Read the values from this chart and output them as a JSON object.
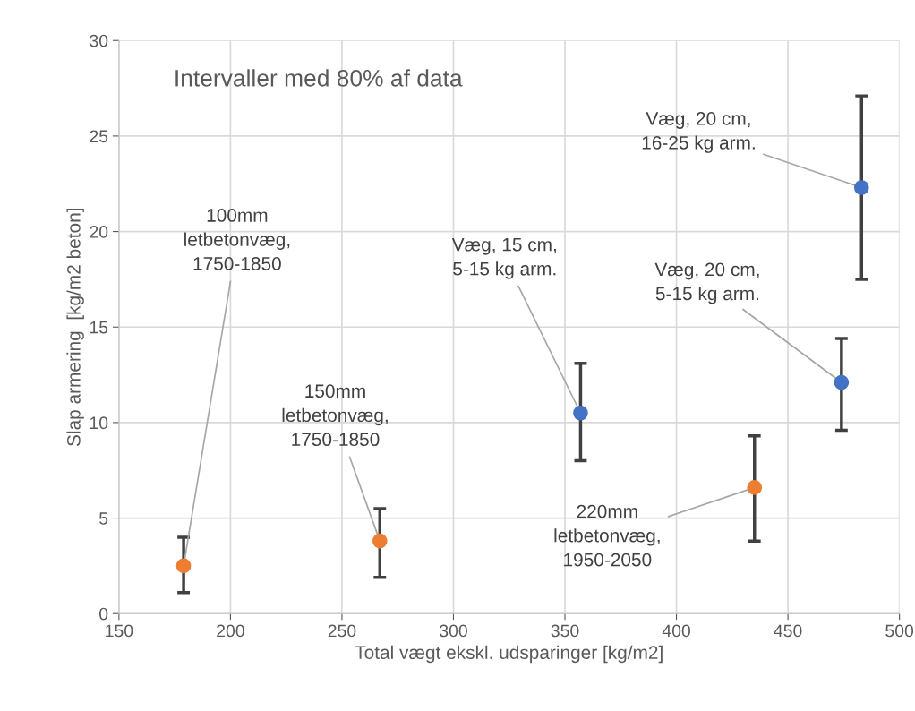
{
  "chart_data": {
    "type": "scatter",
    "xlabel": "Total vægt ekskl. udsparinger [kg/m2]",
    "ylabel": "Slap armering  [kg/m2 beton]",
    "xlim": [
      150,
      500
    ],
    "xticks": [
      150,
      200,
      250,
      300,
      350,
      400,
      450,
      500
    ],
    "ylim": [
      0,
      30
    ],
    "yticks": [
      0,
      5,
      10,
      15,
      20,
      25,
      30
    ],
    "grid": true,
    "marker": "circle",
    "series": [
      {
        "color": "#ed7d31",
        "x": [
          179,
          267,
          435
        ],
        "values": [
          2.5,
          3.8,
          6.6
        ],
        "errors": [
          [
            1.1,
            4.0
          ],
          [
            1.9,
            5.5
          ],
          [
            3.8,
            9.3
          ]
        ]
      },
      {
        "color": "#4472c4",
        "x": [
          357,
          474,
          483
        ],
        "values": [
          10.5,
          12.1,
          22.3
        ],
        "errors": [
          [
            8.0,
            13.1
          ],
          [
            9.6,
            14.4
          ],
          [
            17.5,
            27.1
          ]
        ]
      }
    ],
    "annotations": [
      "Intervaller med 80% af data",
      {
        "text": "100mm\nletbetonvæg,\n1750-1850",
        "x": 179,
        "y": 2.5
      },
      {
        "text": "150mm\nletbetonvæg,\n1750-1850",
        "x": 267,
        "y": 3.8
      },
      {
        "text": "Væg, 15 cm,\n5-15 kg arm.",
        "x": 357,
        "y": 10.5
      },
      {
        "text": "Væg, 20 cm,\n5-15 kg arm.",
        "x": 474,
        "y": 12.1
      },
      {
        "text": "Væg, 20 cm,\n16-25 kg arm.",
        "x": 483,
        "y": 22.3
      },
      {
        "text": "220mm\nletbetonvæg,\n1950-2050",
        "x": 435,
        "y": 6.6
      }
    ]
  }
}
